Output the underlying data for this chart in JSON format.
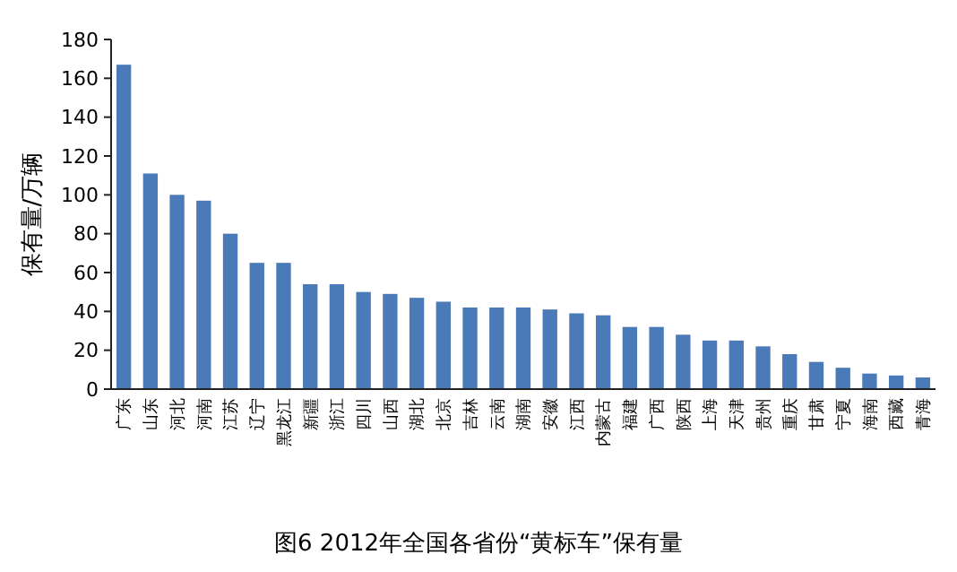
{
  "chart_data": {
    "type": "bar",
    "title": "图6  2012年全国各省份“黄标车”保有量",
    "ylabel": "保有量/万辆",
    "categories": [
      "广东",
      "山东",
      "河北",
      "河南",
      "江苏",
      "辽宁",
      "黑龙江",
      "新疆",
      "浙江",
      "四川",
      "山西",
      "湖北",
      "北京",
      "吉林",
      "云南",
      "湖南",
      "安徽",
      "江西",
      "内蒙古",
      "福建",
      "广西",
      "陕西",
      "上海",
      "天津",
      "贵州",
      "重庆",
      "甘肃",
      "宁夏",
      "海南",
      "西藏",
      "青海"
    ],
    "values": [
      167,
      111,
      100,
      97,
      80,
      65,
      65,
      54,
      54,
      50,
      49,
      47,
      45,
      42,
      42,
      42,
      41,
      39,
      38,
      32,
      32,
      28,
      25,
      25,
      22,
      18,
      14,
      11,
      8,
      7,
      6
    ],
    "color": "#4a7ab8",
    "ylim": [
      0,
      180
    ],
    "yticks": [
      0,
      20,
      40,
      60,
      80,
      100,
      120,
      140,
      160,
      180
    ]
  }
}
